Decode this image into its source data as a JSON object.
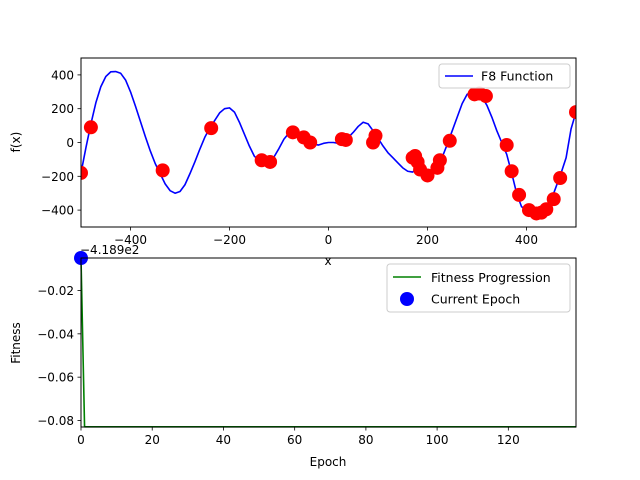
{
  "chart_data": [
    {
      "type": "line",
      "title": "",
      "xlabel": "x",
      "ylabel": "f(x)",
      "xlim": [
        -500,
        500
      ],
      "ylim": [
        -500,
        500
      ],
      "xticks": [
        -400,
        -200,
        0,
        200,
        400
      ],
      "yticks": [
        -400,
        -200,
        0,
        200,
        400
      ],
      "xtick_labels": [
        "−400",
        "−200",
        "0",
        "200",
        "400"
      ],
      "ytick_labels": [
        "−400",
        "−200",
        "0",
        "200",
        "400"
      ],
      "grid": false,
      "legend": "top-right",
      "series": [
        {
          "name": "F8 Function",
          "kind": "line",
          "color": "#0000ff",
          "x": [
            -500,
            -490,
            -480,
            -470,
            -460,
            -450,
            -440,
            -430,
            -420,
            -410,
            -400,
            -390,
            -380,
            -370,
            -360,
            -350,
            -340,
            -330,
            -320,
            -310,
            -300,
            -290,
            -280,
            -270,
            -260,
            -250,
            -240,
            -230,
            -220,
            -210,
            -200,
            -190,
            -180,
            -170,
            -160,
            -150,
            -140,
            -130,
            -120,
            -110,
            -100,
            -90,
            -80,
            -70,
            -60,
            -50,
            -40,
            -30,
            -20,
            -10,
            0,
            10,
            20,
            30,
            40,
            50,
            60,
            70,
            80,
            90,
            100,
            110,
            120,
            130,
            140,
            150,
            160,
            170,
            180,
            190,
            200,
            210,
            220,
            230,
            240,
            250,
            260,
            270,
            280,
            290,
            300,
            310,
            320,
            330,
            340,
            350,
            360,
            370,
            380,
            390,
            400,
            410,
            420,
            430,
            440,
            450,
            460,
            470,
            480,
            490,
            500
          ],
          "y": [
            -180,
            -30,
            110,
            235,
            330,
            390,
            418,
            420,
            410,
            370,
            300,
            215,
            125,
            35,
            -50,
            -125,
            -185,
            -245,
            -285,
            -300,
            -290,
            -250,
            -185,
            -115,
            -40,
            30,
            85,
            130,
            175,
            200,
            205,
            180,
            120,
            50,
            -20,
            -80,
            -110,
            -120,
            -115,
            -85,
            -35,
            20,
            55,
            60,
            40,
            20,
            5,
            -10,
            -15,
            -5,
            0,
            0,
            -5,
            10,
            30,
            60,
            95,
            120,
            110,
            70,
            25,
            -20,
            -60,
            -90,
            -120,
            -150,
            -170,
            -175,
            -150,
            -165,
            -200,
            -190,
            -155,
            -85,
            -10,
            70,
            150,
            230,
            285,
            300,
            295,
            270,
            220,
            150,
            70,
            0,
            -70,
            -180,
            -300,
            -380,
            -400,
            -410,
            -425,
            -410,
            -380,
            -340,
            -260,
            -180,
            -90,
            80,
            180
          ]
        },
        {
          "name": "",
          "kind": "scatter",
          "color": "#ff0000",
          "x": [
            -500,
            -480,
            -335,
            -237,
            -135,
            -118,
            -72,
            -50,
            -37,
            27,
            35,
            90,
            95,
            170,
            175,
            180,
            185,
            200,
            220,
            225,
            245,
            295,
            305,
            318,
            360,
            370,
            385,
            405,
            420,
            430,
            440,
            455,
            468,
            500
          ],
          "y": [
            -180,
            90,
            -165,
            85,
            -105,
            -115,
            60,
            30,
            0,
            20,
            15,
            0,
            40,
            -90,
            -80,
            -115,
            -160,
            -195,
            -150,
            -105,
            10,
            285,
            290,
            275,
            -15,
            -170,
            -310,
            -400,
            -420,
            -415,
            -395,
            -335,
            -210,
            180
          ]
        }
      ]
    },
    {
      "type": "line",
      "title": "",
      "xlabel": "Epoch",
      "ylabel": "Fitness",
      "offset_text": "−4.189e2",
      "xlim": [
        0,
        139
      ],
      "ylim": [
        -0.083,
        -0.005
      ],
      "xticks": [
        0,
        20,
        40,
        60,
        80,
        100,
        120
      ],
      "yticks": [
        -0.02,
        -0.04,
        -0.06,
        -0.08
      ],
      "xtick_labels": [
        "0",
        "20",
        "40",
        "60",
        "80",
        "100",
        "120"
      ],
      "ytick_labels": [
        "−0.02",
        "−0.04",
        "−0.06",
        "−0.08"
      ],
      "grid": false,
      "legend": "top-right",
      "series": [
        {
          "name": "Fitness Progression",
          "kind": "line",
          "color": "#008000",
          "x": [
            0,
            1,
            139
          ],
          "y": [
            -0.005,
            -0.0829,
            -0.0829
          ]
        },
        {
          "name": "Current Epoch",
          "kind": "scatter",
          "color": "#0000ff",
          "x": [
            0
          ],
          "y": [
            -0.005
          ]
        }
      ]
    }
  ]
}
